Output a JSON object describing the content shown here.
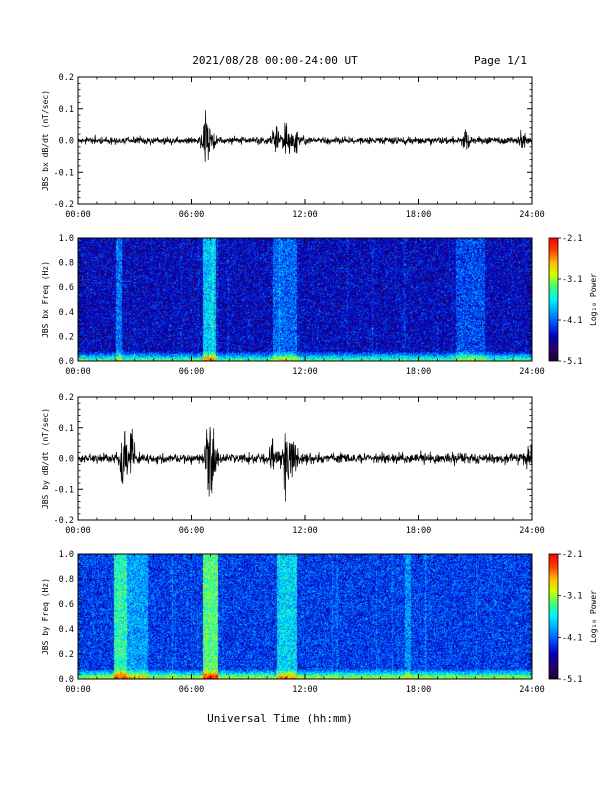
{
  "header": {
    "title": "2021/08/28  00:00-24:00 UT",
    "page": "Page 1/1"
  },
  "x_axis": {
    "label": "Universal Time (hh:mm)",
    "range_hours": [
      0,
      24
    ],
    "ticks": [
      {
        "hour": 0,
        "label": "00:00"
      },
      {
        "hour": 6,
        "label": "06:00"
      },
      {
        "hour": 12,
        "label": "12:00"
      },
      {
        "hour": 18,
        "label": "18:00"
      },
      {
        "hour": 24,
        "label": "24:00"
      }
    ]
  },
  "colors": {
    "trace": "#000000",
    "background": "#ffffff",
    "colormap": [
      "#1a0033",
      "#2a006e",
      "#0000b4",
      "#0046ff",
      "#00a0ff",
      "#00f0ff",
      "#3cff78",
      "#d2ff00",
      "#ffbe00",
      "#ff3c00",
      "#ff0000"
    ]
  },
  "chart_data": [
    {
      "type": "line",
      "name": "bx-timeseries",
      "ylabel": "JBS bx dB/dt (nT/sec)",
      "ylim": [
        -0.2,
        0.2
      ],
      "yticks": [
        {
          "value": 0.2,
          "label": "0.2"
        },
        {
          "value": 0.1,
          "label": "0.1"
        },
        {
          "value": 0.0,
          "label": "0.0"
        },
        {
          "value": -0.1,
          "label": "-0.1"
        },
        {
          "value": -0.2,
          "label": "-0.2"
        }
      ],
      "baseline_noise": 0.008,
      "bursts": [
        {
          "hour": 6.75,
          "amplitude": 0.06
        },
        {
          "hour": 7.1,
          "amplitude": 0.04
        },
        {
          "hour": 10.4,
          "amplitude": 0.03
        },
        {
          "hour": 11.0,
          "amplitude": 0.05
        },
        {
          "hour": 11.5,
          "amplitude": 0.035
        },
        {
          "hour": 20.5,
          "amplitude": 0.02
        },
        {
          "hour": 23.5,
          "amplitude": 0.02
        }
      ]
    },
    {
      "type": "heatmap",
      "name": "bx-spectrogram",
      "ylabel": "JBS bx Freq (Hz)",
      "ylim": [
        0,
        1.0
      ],
      "yticks": [
        {
          "value": 0.0,
          "label": "0.0"
        },
        {
          "value": 0.2,
          "label": "0.2"
        },
        {
          "value": 0.4,
          "label": "0.4"
        },
        {
          "value": 0.6,
          "label": "0.6"
        },
        {
          "value": 0.8,
          "label": "0.8"
        },
        {
          "value": 1.0,
          "label": "1.0"
        }
      ],
      "colorbar": {
        "label": "Log₁₀ Power",
        "range": [
          -5.1,
          -2.1
        ],
        "ticks": [
          {
            "value": -2.1,
            "label": "-2.1"
          },
          {
            "value": -3.1,
            "label": "-3.1"
          },
          {
            "value": -4.1,
            "label": "-4.1"
          },
          {
            "value": -5.1,
            "label": "-5.1"
          }
        ]
      },
      "background_log_power": -4.5,
      "bright_bands": [
        {
          "start_hour": 2.0,
          "end_hour": 2.3,
          "boost": 0.45
        },
        {
          "start_hour": 6.6,
          "end_hour": 7.3,
          "boost": 0.75
        },
        {
          "start_hour": 10.3,
          "end_hour": 11.6,
          "boost": 0.4
        },
        {
          "start_hour": 20.0,
          "end_hour": 21.5,
          "boost": 0.3
        }
      ]
    },
    {
      "type": "line",
      "name": "by-timeseries",
      "ylabel": "JBS by dB/dt (nT/sec)",
      "ylim": [
        -0.2,
        0.2
      ],
      "yticks": [
        {
          "value": 0.2,
          "label": "0.2"
        },
        {
          "value": 0.1,
          "label": "0.1"
        },
        {
          "value": 0.0,
          "label": "0.0"
        },
        {
          "value": -0.1,
          "label": "-0.1"
        },
        {
          "value": -0.2,
          "label": "-0.2"
        }
      ],
      "baseline_noise": 0.012,
      "bursts": [
        {
          "hour": 2.4,
          "amplitude": 0.07
        },
        {
          "hour": 2.8,
          "amplitude": 0.05
        },
        {
          "hour": 6.9,
          "amplitude": 0.09
        },
        {
          "hour": 7.2,
          "amplitude": 0.05
        },
        {
          "hour": 10.3,
          "amplitude": 0.05
        },
        {
          "hour": 11.0,
          "amplitude": 0.08
        },
        {
          "hour": 11.4,
          "amplitude": 0.05
        },
        {
          "hour": 23.8,
          "amplitude": 0.03
        }
      ]
    },
    {
      "type": "heatmap",
      "name": "by-spectrogram",
      "ylabel": "JBS by Freq (Hz)",
      "ylim": [
        0,
        1.0
      ],
      "yticks": [
        {
          "value": 0.0,
          "label": "0.0"
        },
        {
          "value": 0.2,
          "label": "0.2"
        },
        {
          "value": 0.4,
          "label": "0.4"
        },
        {
          "value": 0.6,
          "label": "0.6"
        },
        {
          "value": 0.8,
          "label": "0.8"
        },
        {
          "value": 1.0,
          "label": "1.0"
        }
      ],
      "colorbar": {
        "label": "Log₁₀ Power",
        "range": [
          -5.1,
          -2.1
        ],
        "ticks": [
          {
            "value": -2.1,
            "label": "-2.1"
          },
          {
            "value": -3.1,
            "label": "-3.1"
          },
          {
            "value": -4.1,
            "label": "-4.1"
          },
          {
            "value": -5.1,
            "label": "-5.1"
          }
        ]
      },
      "background_log_power": -4.25,
      "bright_bands": [
        {
          "start_hour": 1.9,
          "end_hour": 2.6,
          "boost": 0.8
        },
        {
          "start_hour": 2.6,
          "end_hour": 3.7,
          "boost": 0.35
        },
        {
          "start_hour": 6.6,
          "end_hour": 7.4,
          "boost": 0.95
        },
        {
          "start_hour": 10.5,
          "end_hour": 11.6,
          "boost": 0.55
        },
        {
          "start_hour": 17.3,
          "end_hour": 17.6,
          "boost": 0.3
        }
      ]
    }
  ]
}
